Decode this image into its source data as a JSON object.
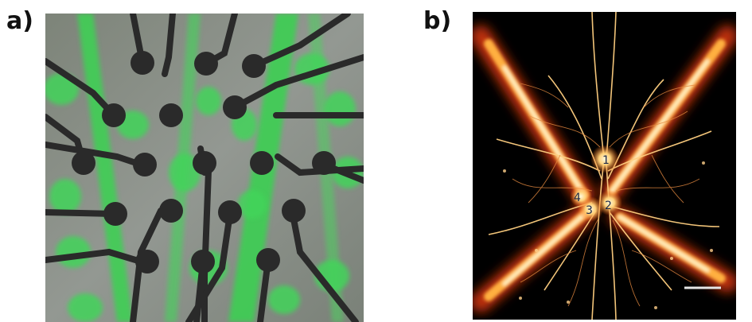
{
  "panels": {
    "a": {
      "label": "a)"
    },
    "b": {
      "label": "b)",
      "neuron_labels": [
        "1",
        "2",
        "3",
        "4"
      ]
    }
  },
  "colors": {
    "fluorescence_green": "#3fd15a",
    "electrode_dark": "#2b2b2b",
    "background_gray": "#8a8f88",
    "glow_hot": "#ffe6a0",
    "glow_red": "#c2300a"
  }
}
